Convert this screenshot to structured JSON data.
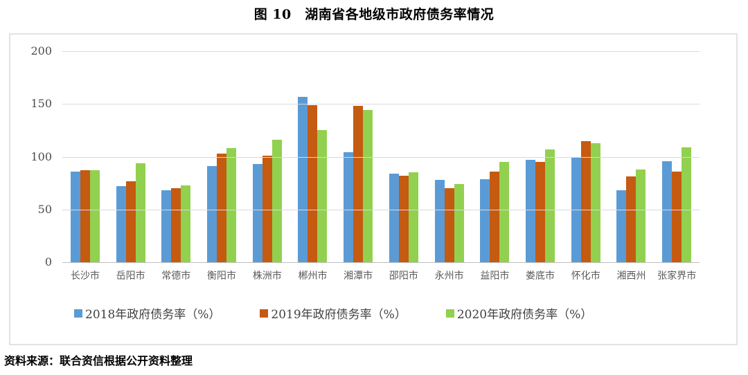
{
  "title": "图 10　湖南省各地级市政府债务率情况",
  "source_note": "资料来源：联合资信根据公开资料整理",
  "colors": {
    "series_2018": "#5B9BD5",
    "series_2019": "#C55A11",
    "series_2020": "#92D050",
    "gridline": "#D9D9D9",
    "axis_text": "#595959",
    "box_border": "#E2E2E2"
  },
  "chart_data": {
    "type": "bar",
    "title": "图 10　湖南省各地级市政府债务率情况",
    "categories": [
      "长沙市",
      "岳阳市",
      "常德市",
      "衡阳市",
      "株洲市",
      "郴州市",
      "湘潭市",
      "邵阳市",
      "永州市",
      "益阳市",
      "娄底市",
      "怀化市",
      "湘西州",
      "张家界市"
    ],
    "series": [
      {
        "name": "2018年政府债务率（%）",
        "color": "#5B9BD5",
        "values": [
          86,
          72,
          68,
          91,
          93,
          157,
          104,
          84,
          78,
          79,
          97,
          99,
          68,
          96
        ]
      },
      {
        "name": "2019年政府债务率（%）",
        "color": "#C55A11",
        "values": [
          87,
          77,
          70,
          103,
          101,
          149,
          148,
          82,
          70,
          86,
          95,
          115,
          81,
          86
        ]
      },
      {
        "name": "2020年政府债务率（%）",
        "color": "#92D050",
        "values": [
          87,
          94,
          73,
          108,
          116,
          125,
          144,
          85,
          74,
          95,
          107,
          113,
          88,
          109
        ]
      }
    ],
    "xlabel": "",
    "ylabel": "",
    "ylim": [
      0,
      200
    ],
    "yticks": [
      0,
      50,
      100,
      150,
      200
    ],
    "grid": true,
    "legend_position": "bottom"
  }
}
